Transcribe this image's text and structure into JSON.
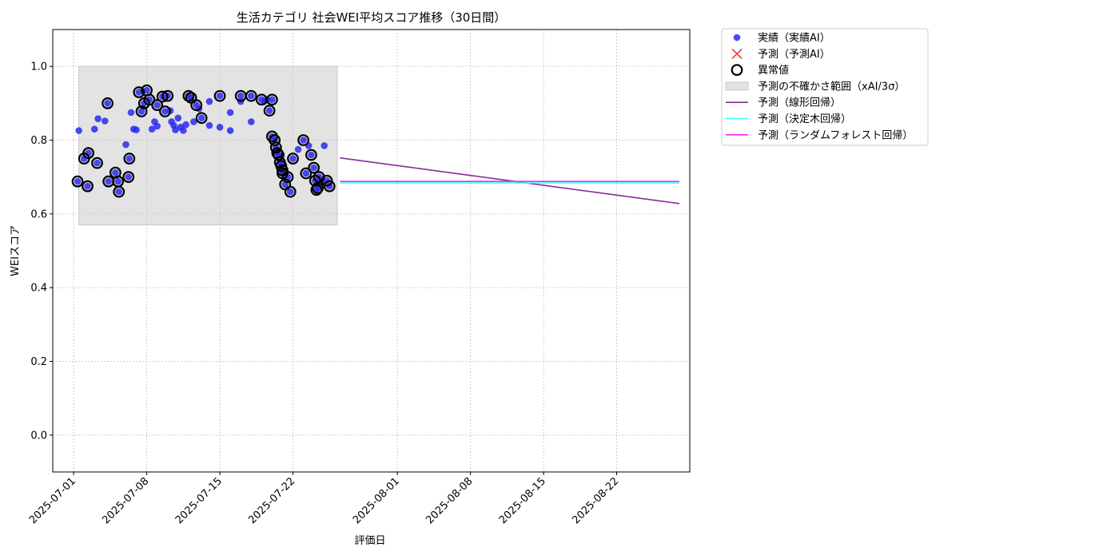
{
  "chart_data": {
    "type": "scatter",
    "title": "生活カテゴリ 社会WEI平均スコア推移（30日間）",
    "xlabel": "評価日",
    "ylabel": "WEIスコア",
    "xlim": [
      "2025-06-29",
      "2025-08-29"
    ],
    "ylim": [
      -0.1,
      1.1
    ],
    "grid": true,
    "legend_position": "outside-top-right",
    "x_ticks": [
      "2025-07-01",
      "2025-07-08",
      "2025-07-15",
      "2025-07-22",
      "2025-08-01",
      "2025-08-08",
      "2025-08-15",
      "2025-08-22"
    ],
    "y_ticks": [
      0.0,
      0.2,
      0.4,
      0.6,
      0.8,
      1.0
    ],
    "uncertainty_band": {
      "name": "予測の不確かさ範囲（xAI/3σ）",
      "x_start": "2025-07-01 12:00",
      "x_end": "2025-07-26 06:00",
      "y_low": 0.57,
      "y_high": 1.0,
      "color": "#e3e3e3"
    },
    "series": [
      {
        "name": "実績（実績AI）",
        "kind": "points",
        "color": "#2a2af0",
        "points": [
          [
            "2025-07-01 09:00",
            0.688
          ],
          [
            "2025-07-01 12:00",
            0.826
          ],
          [
            "2025-07-02 00:00",
            0.75
          ],
          [
            "2025-07-02 08:00",
            0.675
          ],
          [
            "2025-07-02 10:00",
            0.765
          ],
          [
            "2025-07-03 00:00",
            0.83
          ],
          [
            "2025-07-03 06:00",
            0.738
          ],
          [
            "2025-07-03 08:00",
            0.858
          ],
          [
            "2025-07-04 00:00",
            0.852
          ],
          [
            "2025-07-04 06:00",
            0.9
          ],
          [
            "2025-07-04 08:00",
            0.688
          ],
          [
            "2025-07-05 00:00",
            0.712
          ],
          [
            "2025-07-05 06:00",
            0.688
          ],
          [
            "2025-07-05 08:00",
            0.66
          ],
          [
            "2025-07-06 00:00",
            0.788
          ],
          [
            "2025-07-06 06:00",
            0.7
          ],
          [
            "2025-07-06 08:00",
            0.75
          ],
          [
            "2025-07-06 12:00",
            0.875
          ],
          [
            "2025-07-06 18:00",
            0.83
          ],
          [
            "2025-07-07 00:00",
            0.828
          ],
          [
            "2025-07-07 06:00",
            0.93
          ],
          [
            "2025-07-07 12:00",
            0.878
          ],
          [
            "2025-07-07 18:00",
            0.9
          ],
          [
            "2025-07-08 00:00",
            0.935
          ],
          [
            "2025-07-08 06:00",
            0.91
          ],
          [
            "2025-07-08 12:00",
            0.83
          ],
          [
            "2025-07-08 18:00",
            0.85
          ],
          [
            "2025-07-09 00:00",
            0.895
          ],
          [
            "2025-07-09 00:00",
            0.838
          ],
          [
            "2025-07-09 12:00",
            0.918
          ],
          [
            "2025-07-09 18:00",
            0.878
          ],
          [
            "2025-07-10 00:00",
            0.92
          ],
          [
            "2025-07-10 06:00",
            0.88
          ],
          [
            "2025-07-10 09:00",
            0.85
          ],
          [
            "2025-07-10 14:00",
            0.84
          ],
          [
            "2025-07-10 18:00",
            0.828
          ],
          [
            "2025-07-11 00:00",
            0.86
          ],
          [
            "2025-07-11 06:00",
            0.835
          ],
          [
            "2025-07-11 12:00",
            0.826
          ],
          [
            "2025-07-11 18:00",
            0.842
          ],
          [
            "2025-07-12 00:00",
            0.92
          ],
          [
            "2025-07-12 06:00",
            0.915
          ],
          [
            "2025-07-12 12:00",
            0.85
          ],
          [
            "2025-07-12 18:00",
            0.895
          ],
          [
            "2025-07-13 00:00",
            0.885
          ],
          [
            "2025-07-13 06:00",
            0.86
          ],
          [
            "2025-07-14 00:00",
            0.905
          ],
          [
            "2025-07-14 00:00",
            0.84
          ],
          [
            "2025-07-15 00:00",
            0.92
          ],
          [
            "2025-07-15 00:00",
            0.835
          ],
          [
            "2025-07-16 00:00",
            0.875
          ],
          [
            "2025-07-16 00:00",
            0.826
          ],
          [
            "2025-07-17 00:00",
            0.92
          ],
          [
            "2025-07-17 00:00",
            0.905
          ],
          [
            "2025-07-18 00:00",
            0.92
          ],
          [
            "2025-07-18 00:00",
            0.85
          ],
          [
            "2025-07-19 00:00",
            0.91
          ],
          [
            "2025-07-19 06:00",
            0.905
          ],
          [
            "2025-07-19 12:00",
            0.91
          ],
          [
            "2025-07-19 18:00",
            0.88
          ],
          [
            "2025-07-20 00:00",
            0.91
          ],
          [
            "2025-07-20 00:00",
            0.81
          ],
          [
            "2025-07-20 06:00",
            0.8
          ],
          [
            "2025-07-20 09:00",
            0.78
          ],
          [
            "2025-07-20 12:00",
            0.765
          ],
          [
            "2025-07-20 15:00",
            0.76
          ],
          [
            "2025-07-20 18:00",
            0.74
          ],
          [
            "2025-07-20 21:00",
            0.73
          ],
          [
            "2025-07-21 00:00",
            0.718
          ],
          [
            "2025-07-21 00:00",
            0.71
          ],
          [
            "2025-07-21 06:00",
            0.68
          ],
          [
            "2025-07-21 12:00",
            0.7
          ],
          [
            "2025-07-21 18:00",
            0.66
          ],
          [
            "2025-07-22 00:00",
            0.75
          ],
          [
            "2025-07-22 12:00",
            0.775
          ],
          [
            "2025-07-23 00:00",
            0.8
          ],
          [
            "2025-07-23 06:00",
            0.71
          ],
          [
            "2025-07-23 12:00",
            0.785
          ],
          [
            "2025-07-23 18:00",
            0.76
          ],
          [
            "2025-07-24 00:00",
            0.725
          ],
          [
            "2025-07-24 03:00",
            0.69
          ],
          [
            "2025-07-24 06:00",
            0.665
          ],
          [
            "2025-07-24 09:00",
            0.67
          ],
          [
            "2025-07-24 12:00",
            0.7
          ],
          [
            "2025-07-24 18:00",
            0.685
          ],
          [
            "2025-07-25 00:00",
            0.785
          ],
          [
            "2025-07-25 06:00",
            0.69
          ],
          [
            "2025-07-25 12:00",
            0.675
          ]
        ]
      },
      {
        "name": "予測（予測AI）",
        "kind": "x-markers",
        "color": "#ff3333",
        "points": []
      },
      {
        "name": "異常値",
        "kind": "open-circles",
        "color": "#000000",
        "points": [
          [
            "2025-07-01 09:00",
            0.688
          ],
          [
            "2025-07-02 00:00",
            0.75
          ],
          [
            "2025-07-02 08:00",
            0.675
          ],
          [
            "2025-07-02 10:00",
            0.765
          ],
          [
            "2025-07-03 06:00",
            0.738
          ],
          [
            "2025-07-04 06:00",
            0.9
          ],
          [
            "2025-07-04 08:00",
            0.688
          ],
          [
            "2025-07-05 00:00",
            0.712
          ],
          [
            "2025-07-05 06:00",
            0.688
          ],
          [
            "2025-07-05 08:00",
            0.66
          ],
          [
            "2025-07-06 06:00",
            0.7
          ],
          [
            "2025-07-06 08:00",
            0.75
          ],
          [
            "2025-07-07 06:00",
            0.93
          ],
          [
            "2025-07-07 12:00",
            0.878
          ],
          [
            "2025-07-07 18:00",
            0.9
          ],
          [
            "2025-07-08 00:00",
            0.935
          ],
          [
            "2025-07-08 06:00",
            0.91
          ],
          [
            "2025-07-09 00:00",
            0.895
          ],
          [
            "2025-07-09 12:00",
            0.918
          ],
          [
            "2025-07-09 18:00",
            0.878
          ],
          [
            "2025-07-10 00:00",
            0.92
          ],
          [
            "2025-07-12 00:00",
            0.92
          ],
          [
            "2025-07-12 06:00",
            0.915
          ],
          [
            "2025-07-12 18:00",
            0.895
          ],
          [
            "2025-07-13 06:00",
            0.86
          ],
          [
            "2025-07-15 00:00",
            0.92
          ],
          [
            "2025-07-17 00:00",
            0.92
          ],
          [
            "2025-07-18 00:00",
            0.92
          ],
          [
            "2025-07-19 00:00",
            0.91
          ],
          [
            "2025-07-19 18:00",
            0.88
          ],
          [
            "2025-07-20 00:00",
            0.91
          ],
          [
            "2025-07-20 00:00",
            0.81
          ],
          [
            "2025-07-20 06:00",
            0.8
          ],
          [
            "2025-07-20 09:00",
            0.78
          ],
          [
            "2025-07-20 12:00",
            0.765
          ],
          [
            "2025-07-20 15:00",
            0.76
          ],
          [
            "2025-07-20 18:00",
            0.74
          ],
          [
            "2025-07-20 21:00",
            0.73
          ],
          [
            "2025-07-21 00:00",
            0.718
          ],
          [
            "2025-07-21 00:00",
            0.71
          ],
          [
            "2025-07-21 06:00",
            0.68
          ],
          [
            "2025-07-21 12:00",
            0.7
          ],
          [
            "2025-07-21 18:00",
            0.66
          ],
          [
            "2025-07-22 00:00",
            0.75
          ],
          [
            "2025-07-23 00:00",
            0.8
          ],
          [
            "2025-07-23 06:00",
            0.71
          ],
          [
            "2025-07-23 18:00",
            0.76
          ],
          [
            "2025-07-24 00:00",
            0.725
          ],
          [
            "2025-07-24 03:00",
            0.69
          ],
          [
            "2025-07-24 06:00",
            0.665
          ],
          [
            "2025-07-24 09:00",
            0.67
          ],
          [
            "2025-07-24 12:00",
            0.7
          ],
          [
            "2025-07-25 06:00",
            0.69
          ],
          [
            "2025-07-25 12:00",
            0.675
          ]
        ]
      },
      {
        "name": "予測（線形回帰）",
        "kind": "line",
        "color": "#8b2a9b",
        "points": [
          [
            "2025-07-26 12:00",
            0.752
          ],
          [
            "2025-08-28 00:00",
            0.628
          ]
        ]
      },
      {
        "name": "予測（決定木回帰）",
        "kind": "line",
        "color": "#33ffff",
        "points": [
          [
            "2025-07-26 12:00",
            0.684
          ],
          [
            "2025-08-28 00:00",
            0.684
          ]
        ]
      },
      {
        "name": "予測（ランダムフォレスト回帰）",
        "kind": "line",
        "color": "#ff22ff",
        "points": [
          [
            "2025-07-26 12:00",
            0.688
          ],
          [
            "2025-08-28 00:00",
            0.688
          ]
        ]
      }
    ]
  }
}
